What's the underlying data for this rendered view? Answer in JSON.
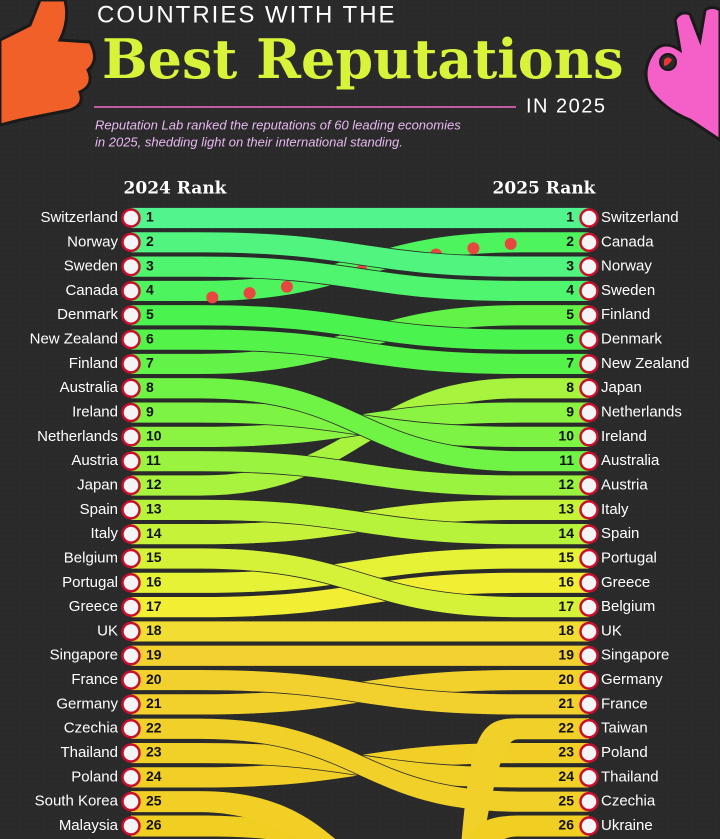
{
  "chart_data": {
    "type": "bump",
    "kicker": "COUNTRIES WITH THE",
    "title": "Best Reputations",
    "year_label": "IN 2025",
    "subtitle_lines": [
      "Reputation Lab ranked the reputations of 60 leading economies",
      "in 2025, shedding light on their international standing."
    ],
    "left": {
      "header": "2024 Rank",
      "rows": [
        {
          "name": "Switzerland",
          "rank": 1
        },
        {
          "name": "Norway",
          "rank": 2
        },
        {
          "name": "Sweden",
          "rank": 3
        },
        {
          "name": "Canada",
          "rank": 4,
          "style": "dotted"
        },
        {
          "name": "Denmark",
          "rank": 5
        },
        {
          "name": "New Zealand",
          "rank": 6
        },
        {
          "name": "Finland",
          "rank": 7
        },
        {
          "name": "Australia",
          "rank": 8
        },
        {
          "name": "Ireland",
          "rank": 9
        },
        {
          "name": "Netherlands",
          "rank": 10
        },
        {
          "name": "Austria",
          "rank": 11
        },
        {
          "name": "Japan",
          "rank": 12
        },
        {
          "name": "Spain",
          "rank": 13
        },
        {
          "name": "Italy",
          "rank": 14
        },
        {
          "name": "Belgium",
          "rank": 15
        },
        {
          "name": "Portugal",
          "rank": 16
        },
        {
          "name": "Greece",
          "rank": 17
        },
        {
          "name": "UK",
          "rank": 18
        },
        {
          "name": "Singapore",
          "rank": 19
        },
        {
          "name": "France",
          "rank": 20
        },
        {
          "name": "Germany",
          "rank": 21
        },
        {
          "name": "Czechia",
          "rank": 22
        },
        {
          "name": "Thailand",
          "rank": 23
        },
        {
          "name": "Poland",
          "rank": 24
        },
        {
          "name": "South Korea",
          "rank": 25
        },
        {
          "name": "Malaysia",
          "rank": 26
        }
      ]
    },
    "right": {
      "header": "2025 Rank",
      "rows": [
        {
          "name": "Switzerland",
          "rank": 1
        },
        {
          "name": "Canada",
          "rank": 2
        },
        {
          "name": "Norway",
          "rank": 3
        },
        {
          "name": "Sweden",
          "rank": 4
        },
        {
          "name": "Finland",
          "rank": 5
        },
        {
          "name": "Denmark",
          "rank": 6
        },
        {
          "name": "New Zealand",
          "rank": 7
        },
        {
          "name": "Japan",
          "rank": 8
        },
        {
          "name": "Netherlands",
          "rank": 9
        },
        {
          "name": "Ireland",
          "rank": 10
        },
        {
          "name": "Australia",
          "rank": 11
        },
        {
          "name": "Austria",
          "rank": 12
        },
        {
          "name": "Italy",
          "rank": 13
        },
        {
          "name": "Spain",
          "rank": 14
        },
        {
          "name": "Portugal",
          "rank": 15
        },
        {
          "name": "Greece",
          "rank": 16
        },
        {
          "name": "Belgium",
          "rank": 17
        },
        {
          "name": "UK",
          "rank": 18
        },
        {
          "name": "Singapore",
          "rank": 19
        },
        {
          "name": "Germany",
          "rank": 20
        },
        {
          "name": "France",
          "rank": 21
        },
        {
          "name": "Taiwan",
          "rank": 22
        },
        {
          "name": "Poland",
          "rank": 23
        },
        {
          "name": "Thailand",
          "rank": 24
        },
        {
          "name": "Czechia",
          "rank": 25
        },
        {
          "name": "Ukraine",
          "rank": 26
        }
      ]
    }
  }
}
